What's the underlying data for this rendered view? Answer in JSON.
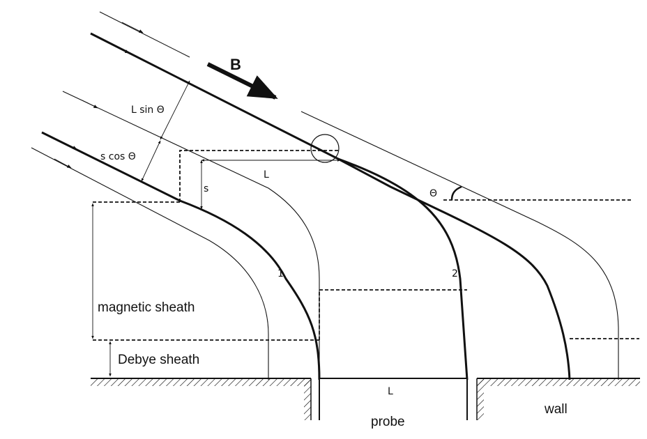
{
  "field_label": "B",
  "labels": {
    "l_sin_theta": "L sin Θ",
    "s_cos_theta": "s cos Θ",
    "length_L_top": "L",
    "s": "s",
    "theta": "Θ",
    "line_1": "1",
    "line_2": "2",
    "magnetic_sheath": "magnetic sheath",
    "debye_sheath": "Debye sheath",
    "length_L_bottom": "L",
    "probe": "probe",
    "wall": "wall"
  }
}
